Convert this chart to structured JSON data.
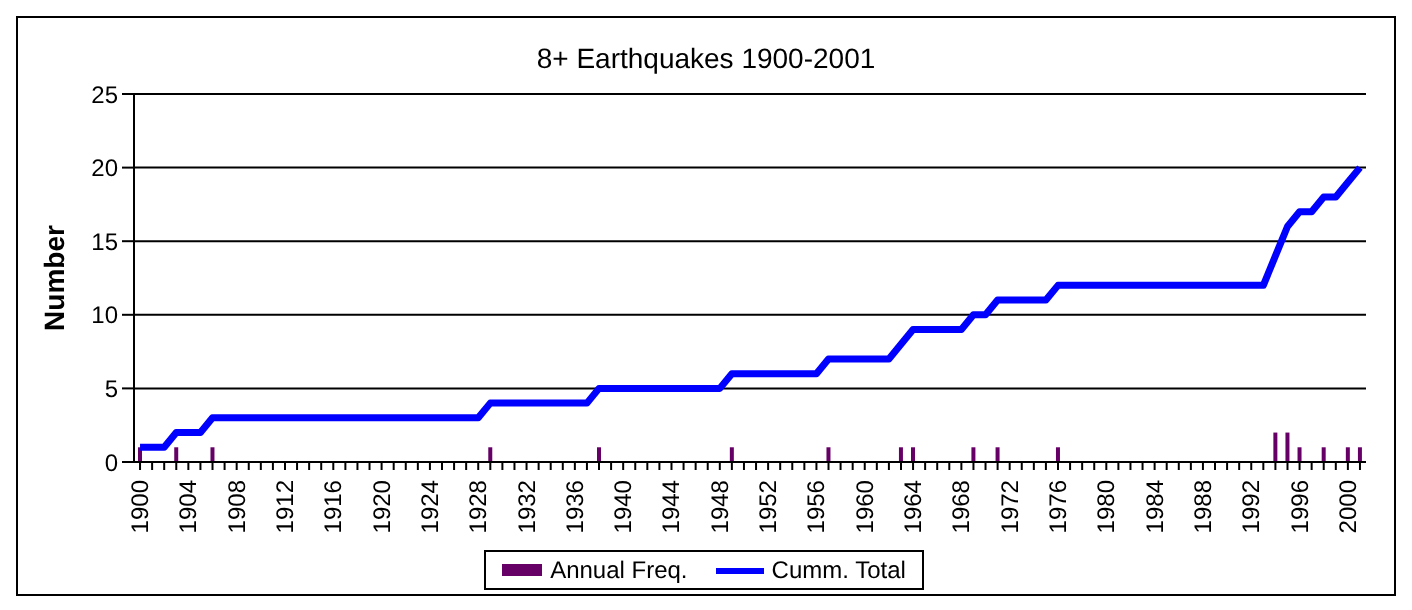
{
  "chart_data": {
    "type": "bar",
    "title": "8+ Earthquakes 1900-2001",
    "ylabel": "Number",
    "categories": [
      "1900",
      null,
      null,
      null,
      "1904",
      null,
      null,
      null,
      "1908",
      null,
      null,
      null,
      "1912",
      null,
      null,
      null,
      "1916",
      null,
      null,
      null,
      "1920",
      null,
      null,
      null,
      "1924",
      null,
      null,
      null,
      "1928",
      null,
      null,
      null,
      "1932",
      null,
      null,
      null,
      "1936",
      null,
      null,
      null,
      "1940",
      null,
      null,
      null,
      "1944",
      null,
      null,
      null,
      "1948",
      null,
      null,
      null,
      "1952",
      null,
      null,
      null,
      "1956",
      null,
      null,
      null,
      "1960",
      null,
      null,
      null,
      "1964",
      null,
      null,
      null,
      "1968",
      null,
      null,
      null,
      "1972",
      null,
      null,
      null,
      "1976",
      null,
      null,
      null,
      "1980",
      null,
      null,
      null,
      "1984",
      null,
      null,
      null,
      "1988",
      null,
      null,
      null,
      "1992",
      null,
      null,
      null,
      "1996",
      null,
      null,
      null,
      "2000",
      null
    ],
    "series": [
      {
        "name": "Annual Freq.",
        "color": "#660066",
        "values": [
          1,
          0,
          0,
          1,
          0,
          0,
          1,
          0,
          0,
          0,
          0,
          0,
          0,
          0,
          0,
          0,
          0,
          0,
          0,
          0,
          0,
          0,
          0,
          0,
          0,
          0,
          0,
          0,
          0,
          1,
          0,
          0,
          0,
          0,
          0,
          0,
          0,
          0,
          1,
          0,
          0,
          0,
          0,
          0,
          0,
          0,
          0,
          0,
          0,
          1,
          0,
          0,
          0,
          0,
          0,
          0,
          0,
          1,
          0,
          0,
          0,
          0,
          0,
          1,
          1,
          0,
          0,
          0,
          0,
          1,
          0,
          1,
          0,
          0,
          0,
          0,
          1,
          0,
          0,
          0,
          0,
          0,
          0,
          0,
          0,
          0,
          0,
          0,
          0,
          0,
          0,
          0,
          0,
          0,
          2,
          2,
          1,
          0,
          1,
          0,
          1,
          1
        ]
      },
      {
        "name": "Cumm. Total",
        "type": "line",
        "color": "#0000ff",
        "values": [
          1,
          1,
          1,
          2,
          2,
          2,
          3,
          3,
          3,
          3,
          3,
          3,
          3,
          3,
          3,
          3,
          3,
          3,
          3,
          3,
          3,
          3,
          3,
          3,
          3,
          3,
          3,
          3,
          3,
          4,
          4,
          4,
          4,
          4,
          4,
          4,
          4,
          4,
          5,
          5,
          5,
          5,
          5,
          5,
          5,
          5,
          5,
          5,
          5,
          6,
          6,
          6,
          6,
          6,
          6,
          6,
          6,
          7,
          7,
          7,
          7,
          7,
          7,
          8,
          9,
          9,
          9,
          9,
          9,
          10,
          10,
          11,
          11,
          11,
          11,
          11,
          12,
          12,
          12,
          12,
          12,
          12,
          12,
          12,
          12,
          12,
          12,
          12,
          12,
          12,
          12,
          12,
          12,
          12,
          14,
          16,
          17,
          17,
          18,
          18,
          19,
          20
        ]
      }
    ],
    "ylim": [
      0,
      25
    ],
    "yticks": [
      0,
      5,
      10,
      15,
      20,
      25
    ],
    "grid": "y",
    "legend": "bottom",
    "marker": "none"
  }
}
